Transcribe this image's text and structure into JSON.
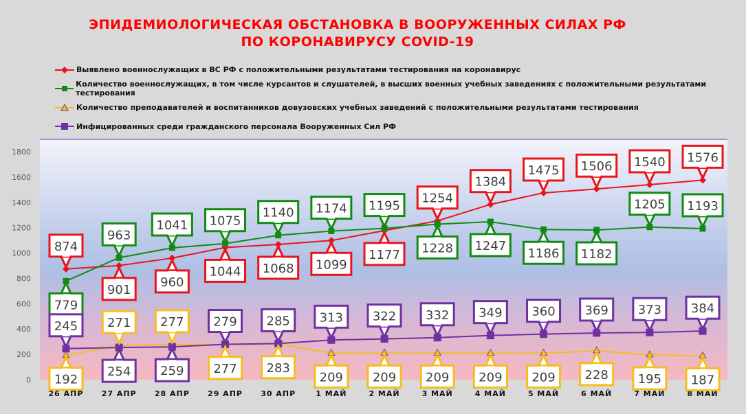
{
  "chart_data": {
    "type": "line",
    "title": [
      "ЭПИДЕМИОЛОГИЧЕСКАЯ ОБСТАНОВКА В ВООРУЖЕННЫХ СИЛАХ РФ",
      "ПО КОРОНАВИРУСУ COVID-19"
    ],
    "categories": [
      "26 АПР",
      "27 АПР",
      "28 АПР",
      "29 АПР",
      "30 АПР",
      "1 МАЙ",
      "2 МАЙ",
      "3 МАЙ",
      "4 МАЙ",
      "5 МАЙ",
      "6 МАЙ",
      "7 МАЙ",
      "8 МАЙ"
    ],
    "ylim": [
      0,
      1800
    ],
    "yticks": [
      0,
      200,
      400,
      600,
      800,
      1000,
      1200,
      1400,
      1600,
      1800
    ],
    "legend_position": "top",
    "series": [
      {
        "name": "Выявлено военнослужащих в ВС РФ с положительными результатами тестирования на коронавирус",
        "color": "#e8141c",
        "marker": "diamond",
        "values": [
          874,
          901,
          960,
          1044,
          1068,
          1099,
          1177,
          1254,
          1384,
          1475,
          1506,
          1540,
          1576
        ]
      },
      {
        "name": "Количество военнослужащих, в том числе курсантов и слушателей, в высших военных учебных заведениях с положительными результатами тестирования",
        "color": "#138a13",
        "marker": "square",
        "values": [
          779,
          963,
          1041,
          1075,
          1140,
          1174,
          1195,
          1228,
          1247,
          1186,
          1182,
          1205,
          1193
        ]
      },
      {
        "name": "Количество преподавателей и воспитанников довузовских учебных заведений с положительными результатами тестирования",
        "color": "#f5bd1f",
        "marker": "triangle",
        "values": [
          192,
          271,
          277,
          277,
          283,
          209,
          209,
          209,
          209,
          209,
          228,
          195,
          187
        ]
      },
      {
        "name": "Инфицированных среди гражданского персонала Вооруженных Сил РФ",
        "color": "#7030a0",
        "marker": "square",
        "values": [
          245,
          254,
          259,
          279,
          285,
          313,
          322,
          332,
          349,
          360,
          369,
          373,
          384
        ]
      }
    ]
  }
}
